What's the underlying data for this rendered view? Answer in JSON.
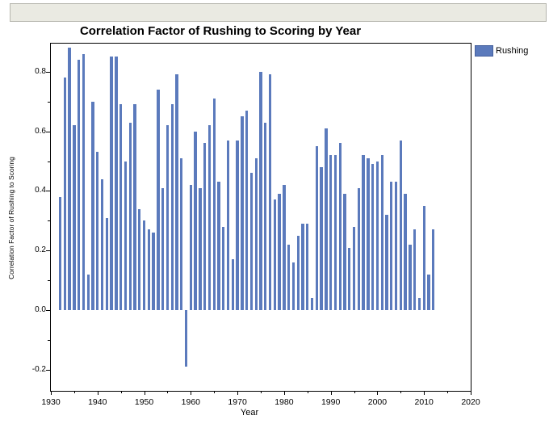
{
  "chart_data": {
    "type": "bar",
    "title": "Correlation Factor of Rushing to Scoring by Year",
    "xlabel": "Year",
    "ylabel": "Correlation Factor of Rushing to Scoring",
    "legend": [
      {
        "label": "Rushing",
        "color": "#5b7abc"
      }
    ],
    "bar_color": "#5b7abc",
    "xlim": [
      1930,
      2020
    ],
    "ylim": [
      -0.27,
      0.89
    ],
    "grid": false,
    "legend_position": "top-right-outside",
    "x": [
      1932,
      1933,
      1934,
      1935,
      1936,
      1937,
      1938,
      1939,
      1940,
      1941,
      1942,
      1943,
      1944,
      1945,
      1946,
      1947,
      1948,
      1949,
      1950,
      1951,
      1952,
      1953,
      1954,
      1955,
      1956,
      1957,
      1958,
      1959,
      1960,
      1961,
      1962,
      1963,
      1964,
      1965,
      1966,
      1967,
      1968,
      1969,
      1970,
      1971,
      1972,
      1973,
      1974,
      1975,
      1976,
      1977,
      1978,
      1979,
      1980,
      1981,
      1982,
      1983,
      1984,
      1985,
      1986,
      1987,
      1988,
      1989,
      1990,
      1991,
      1992,
      1993,
      1994,
      1995,
      1996,
      1997,
      1998,
      1999,
      2000,
      2001,
      2002,
      2003,
      2004,
      2005,
      2006,
      2007,
      2008,
      2009,
      2010,
      2011,
      2012
    ],
    "values": [
      0.38,
      0.78,
      0.88,
      0.62,
      0.84,
      0.86,
      0.12,
      0.7,
      0.53,
      0.44,
      0.31,
      0.85,
      0.85,
      0.69,
      0.5,
      0.63,
      0.69,
      0.34,
      0.3,
      0.27,
      0.26,
      0.74,
      0.41,
      0.62,
      0.69,
      0.79,
      0.51,
      -0.19,
      0.42,
      0.6,
      0.41,
      0.56,
      0.62,
      0.71,
      0.43,
      0.28,
      0.57,
      0.17,
      0.57,
      0.65,
      0.67,
      0.46,
      0.51,
      0.8,
      0.63,
      0.79,
      0.37,
      0.39,
      0.42,
      0.22,
      0.16,
      0.25,
      0.29,
      0.29,
      0.04,
      0.55,
      0.48,
      0.61,
      0.52,
      0.52,
      0.56,
      0.39,
      0.21,
      0.28,
      0.41,
      0.52,
      0.51,
      0.49,
      0.5,
      0.52,
      0.32,
      0.43,
      0.43,
      0.57,
      0.39,
      0.22,
      0.27,
      0.04,
      0.35,
      0.12,
      0.27
    ],
    "y_ticks": [
      {
        "label": "0.8",
        "value": 0.8
      },
      {
        "label": "0.6",
        "value": 0.6
      },
      {
        "label": "0.4",
        "value": 0.4
      },
      {
        "label": "0.2",
        "value": 0.2
      },
      {
        "label": "0.0",
        "value": 0.0
      },
      {
        "label": "-0.2",
        "value": -0.2
      }
    ],
    "y_minor_ticks": [
      0.7,
      0.5,
      0.3,
      0.1,
      -0.1
    ],
    "x_ticks": [
      {
        "label": "1930",
        "value": 1930
      },
      {
        "label": "1940",
        "value": 1940
      },
      {
        "label": "1950",
        "value": 1950
      },
      {
        "label": "1960",
        "value": 1960
      },
      {
        "label": "1970",
        "value": 1970
      },
      {
        "label": "1980",
        "value": 1980
      },
      {
        "label": "1990",
        "value": 1990
      },
      {
        "label": "2000",
        "value": 2000
      },
      {
        "label": "2010",
        "value": 2010
      },
      {
        "label": "2020",
        "value": 2020
      }
    ],
    "x_minor_ticks": [
      1935,
      1945,
      1955,
      1965,
      1975,
      1985,
      1995,
      2005,
      2015
    ]
  }
}
